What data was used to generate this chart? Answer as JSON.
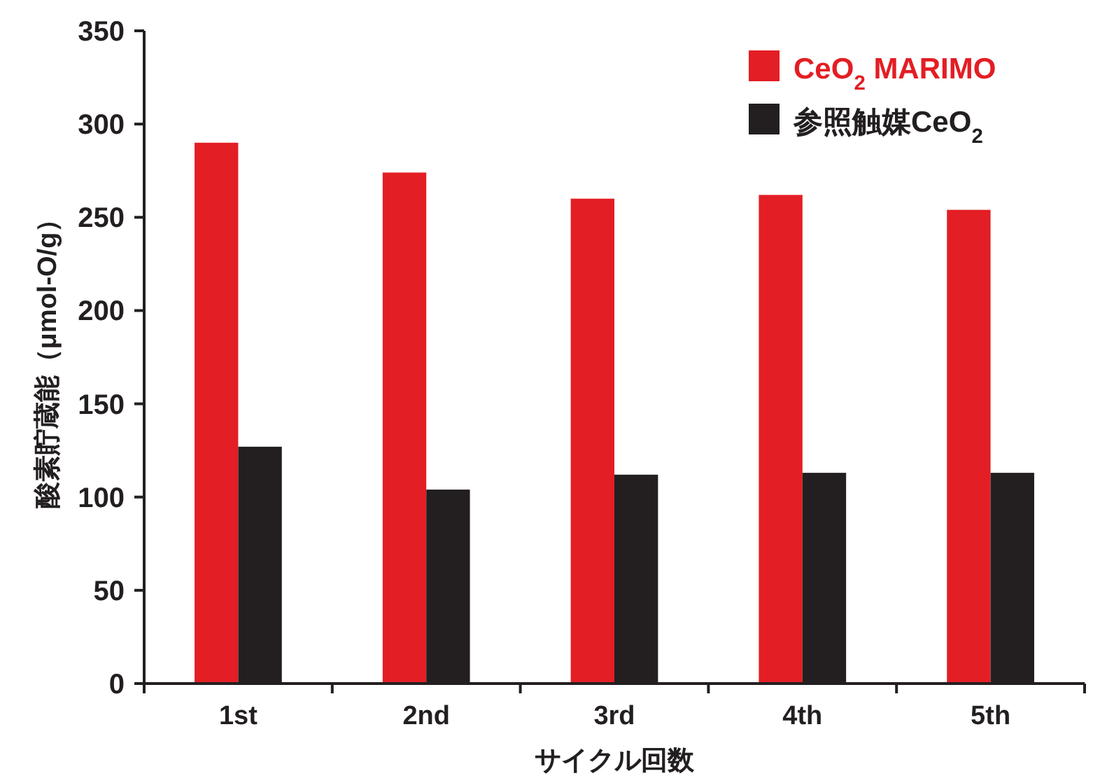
{
  "chart_data": {
    "type": "bar",
    "xlabel": "サイクル回数",
    "ylabel": "酸素貯蔵能（μmol-O/g）",
    "categories": [
      "1st",
      "2nd",
      "3rd",
      "4th",
      "5th"
    ],
    "series": [
      {
        "name": "CeO$_{2}$ MARIMO",
        "color": "#e31e24",
        "values": [
          290,
          274,
          260,
          262,
          254
        ]
      },
      {
        "name": "参照触媒CeO$_{2}$",
        "color": "#231f20",
        "values": [
          127,
          104,
          112,
          113,
          113
        ]
      }
    ],
    "ylim": [
      0,
      350
    ],
    "yticks": [
      0,
      50,
      100,
      150,
      200,
      250,
      300,
      350
    ],
    "grid": false,
    "legend": "top right"
  }
}
